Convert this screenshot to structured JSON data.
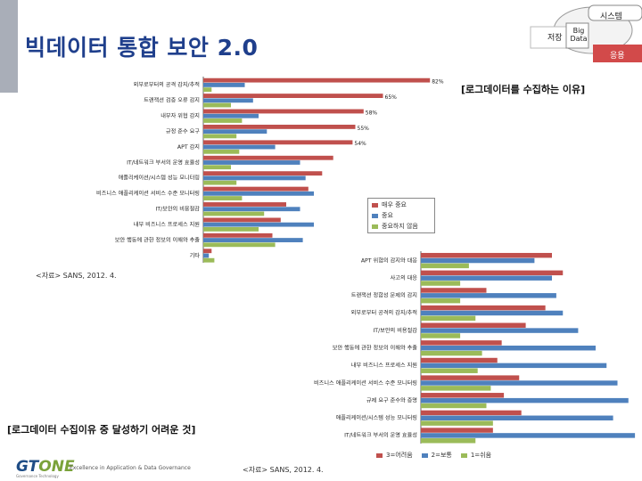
{
  "page": {
    "title": "빅데이터 통합 보안 2.0",
    "caption_right": "[로그데이터를 수집하는 이유]",
    "caption_bottom": "[로그데이터 수집이유 중 달성하기 어려운 것]",
    "source_top": "<자료> SANS, 2012. 4.",
    "source_bottom": "<자료> SANS, 2012. 4.",
    "footer_brand_a": "GT",
    "footer_brand_b": "ONE",
    "footer_tagline": "Excellence in Application & Data Governance",
    "footer_sub": "Governance Technology"
  },
  "diagram": {
    "system": "시스템",
    "storage": "저장",
    "bigdata": "Big Data",
    "apply": "응용"
  },
  "colors": {
    "title": "#1f3f8c",
    "red": "#c0504d",
    "blue": "#4f81bd",
    "green": "#9bbb59"
  },
  "chart_data": [
    {
      "type": "bar",
      "orientation": "horizontal",
      "title": "로그데이터를 수집하는 이유",
      "categories": [
        "외부로부터의 공격 감지/추적",
        "트랜잭션 검증 오류 감지",
        "내부자 위협 감지",
        "규정 준수 요구",
        "APT 감지",
        "IT/네트워크 부서의 운영 효율성",
        "애플리케이션/시스템 성능 모니터링",
        "비즈니스 애플리케이션 서비스 수준 모니터링",
        "IT/보안의 비용절감",
        "내부 비즈니스 프로세스 지원",
        "보안 행동에 관한 정보의 이해와 추출",
        "기타"
      ],
      "series": [
        {
          "name": "매우 중요",
          "values": [
            82,
            65,
            58,
            55,
            54,
            47,
            43,
            38,
            30,
            28,
            25,
            3
          ]
        },
        {
          "name": "중요",
          "values": [
            15,
            18,
            20,
            23,
            26,
            35,
            37,
            40,
            35,
            40,
            36,
            2
          ]
        },
        {
          "name": "중요하지 않음",
          "values": [
            3,
            10,
            14,
            12,
            13,
            10,
            12,
            14,
            22,
            20,
            26,
            4
          ]
        }
      ],
      "data_labels": [
        "82%",
        "65%",
        "58%",
        "55%",
        "54%"
      ],
      "legend": "right"
    },
    {
      "type": "bar",
      "orientation": "horizontal",
      "title": "로그데이터 수집이유 중 달성하기 어려운 것",
      "categories": [
        "APT 위협의 감지와 대응",
        "사고의 대응",
        "트랜잭션 정합성 문제의 감지",
        "외부로부터 공격의 감지/추적",
        "IT/보안의 비용절감",
        "보안 행동에 관한 정보의 이해와 추출",
        "내부 비즈니스 프로세스 지원",
        "비즈니스 애플리케이션 서비스 수준 모니터링",
        "규제 요구 준수와 증명",
        "애플리케이션/시스템 성능 모니터링",
        "IT/네트워크 부서의 운영 효율성"
      ],
      "series": [
        {
          "name": "3=어려움",
          "values": [
            60,
            65,
            30,
            57,
            48,
            37,
            35,
            45,
            38,
            46,
            33
          ]
        },
        {
          "name": "2=보통",
          "values": [
            52,
            60,
            62,
            65,
            72,
            80,
            85,
            90,
            95,
            88,
            98
          ]
        },
        {
          "name": "1=쉬움",
          "values": [
            22,
            18,
            18,
            25,
            18,
            28,
            26,
            32,
            30,
            33,
            25
          ]
        }
      ],
      "legend": "bottom"
    }
  ]
}
